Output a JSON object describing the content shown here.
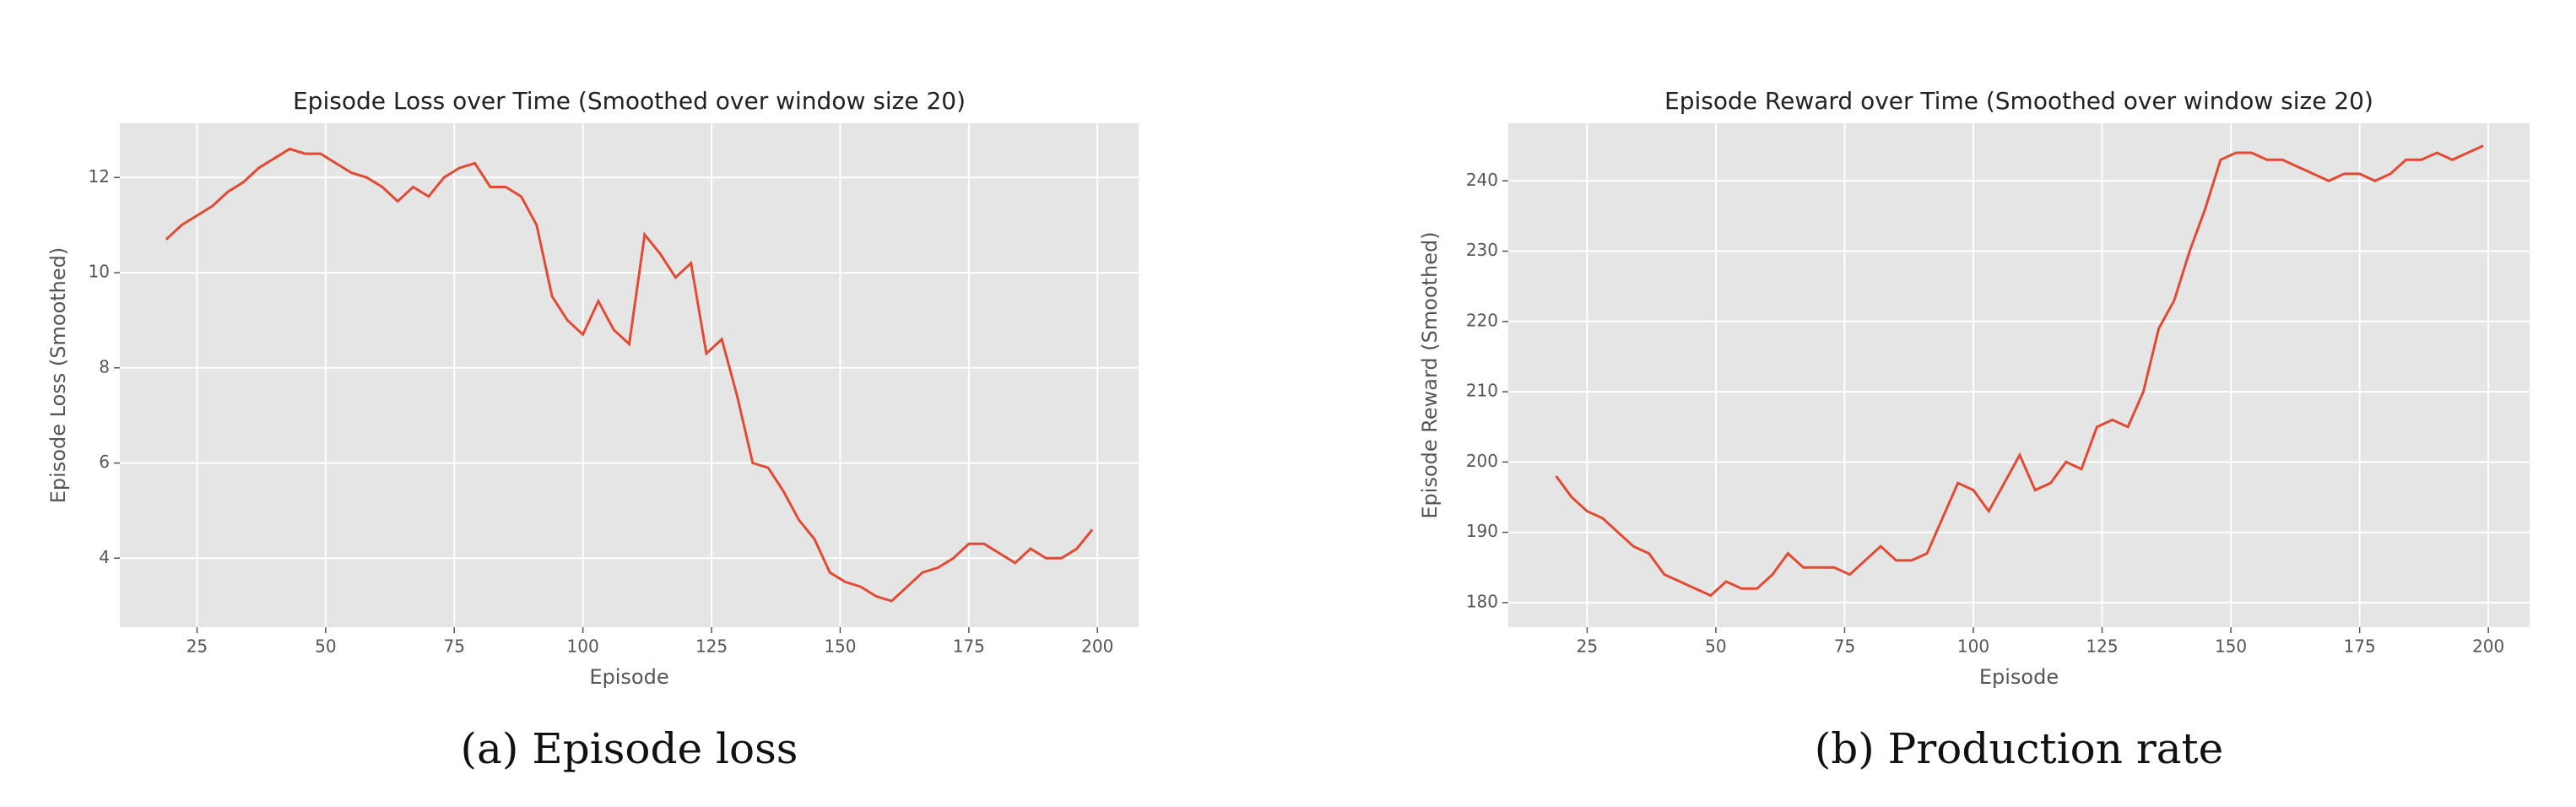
{
  "chart_data": [
    {
      "type": "line",
      "title": "Episode Loss over Time (Smoothed over window size 20)",
      "xlabel": "Episode",
      "ylabel": "Episode Loss (Smoothed)",
      "caption": "(a) Episode loss",
      "color": "#e24a33",
      "grid": true,
      "x": [
        19,
        22,
        25,
        28,
        31,
        34,
        37,
        40,
        43,
        46,
        49,
        52,
        55,
        58,
        61,
        64,
        67,
        70,
        73,
        76,
        79,
        82,
        85,
        88,
        91,
        94,
        97,
        100,
        103,
        106,
        109,
        112,
        115,
        118,
        121,
        124,
        127,
        130,
        133,
        136,
        139,
        142,
        145,
        148,
        151,
        154,
        157,
        160,
        163,
        166,
        169,
        172,
        175,
        178,
        181,
        184,
        187,
        190,
        193,
        196,
        199
      ],
      "values": [
        10.7,
        11.0,
        11.2,
        11.4,
        11.7,
        11.9,
        12.2,
        12.4,
        12.6,
        12.5,
        12.5,
        12.3,
        12.1,
        12.0,
        11.8,
        11.5,
        11.8,
        11.6,
        12.0,
        12.2,
        12.3,
        11.8,
        11.8,
        11.6,
        11.0,
        9.5,
        9.0,
        8.7,
        9.4,
        8.8,
        8.5,
        10.8,
        10.4,
        9.9,
        10.2,
        8.3,
        8.6,
        7.4,
        6.0,
        5.9,
        5.4,
        4.8,
        4.4,
        3.7,
        3.5,
        3.4,
        3.2,
        3.1,
        3.4,
        3.7,
        3.8,
        4.0,
        4.3,
        4.3,
        4.1,
        3.9,
        4.2,
        4.0,
        4.0,
        4.2,
        4.6
      ],
      "xlim": [
        10,
        208
      ],
      "xticks": [
        25,
        50,
        75,
        100,
        125,
        150,
        175,
        200
      ],
      "ylim": [
        2.55,
        13.14
      ],
      "yticks": [
        4,
        6,
        8,
        10,
        12
      ]
    },
    {
      "type": "line",
      "title": "Episode Reward over Time (Smoothed over window size 20)",
      "xlabel": "Episode",
      "ylabel": "Episode Reward (Smoothed)",
      "caption": "(b) Production rate",
      "color": "#e24a33",
      "grid": true,
      "x": [
        19,
        22,
        25,
        28,
        31,
        34,
        37,
        40,
        43,
        46,
        49,
        52,
        55,
        58,
        61,
        64,
        67,
        70,
        73,
        76,
        79,
        82,
        85,
        88,
        91,
        94,
        97,
        100,
        103,
        106,
        109,
        112,
        115,
        118,
        121,
        124,
        127,
        130,
        133,
        136,
        139,
        142,
        145,
        148,
        151,
        154,
        157,
        160,
        163,
        166,
        169,
        172,
        175,
        178,
        181,
        184,
        187,
        190,
        193,
        196,
        199
      ],
      "values": [
        198,
        195,
        193,
        192,
        190,
        188,
        187,
        184,
        183,
        182,
        181,
        183,
        182,
        182,
        184,
        187,
        185,
        185,
        185,
        184,
        186,
        188,
        186,
        186,
        187,
        192,
        197,
        196,
        193,
        197,
        201,
        196,
        197,
        200,
        199,
        205,
        206,
        205,
        210,
        219,
        223,
        230,
        236,
        243,
        244,
        244,
        243,
        243,
        242,
        241,
        240,
        241,
        241,
        240,
        241,
        243,
        243,
        244,
        243,
        244,
        245
      ],
      "xlim": [
        9.7,
        208
      ],
      "xticks": [
        25,
        50,
        75,
        100,
        125,
        150,
        175,
        200
      ],
      "ylim": [
        176.5,
        248.2
      ],
      "yticks": [
        180,
        190,
        200,
        210,
        220,
        230,
        240
      ]
    }
  ]
}
